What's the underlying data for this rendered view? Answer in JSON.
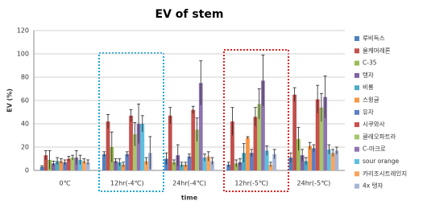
{
  "chart_data": {
    "type": "bar",
    "title": "EV of stem",
    "x_label": "time",
    "y_label": "EV (%)",
    "categories": [
      "0℃",
      "12hr(-4℃)",
      "24hr(-4℃)",
      "12hr(-5℃)",
      "24hr(-5℃)"
    ],
    "ylim": [
      0,
      120
    ],
    "yticks": [
      0,
      20,
      40,
      60,
      80,
      100,
      120
    ],
    "grid": true,
    "series": [
      {
        "name": "루비득스",
        "color": "#4F81BD",
        "values": [
          3,
          14,
          10,
          5,
          11
        ],
        "errors": [
          1,
          2,
          5,
          2,
          4
        ]
      },
      {
        "name": "올케머레론",
        "color": "#C0504D",
        "values": [
          13,
          42,
          47,
          42,
          65
        ],
        "errors": [
          4,
          6,
          7,
          12,
          6
        ]
      },
      {
        "name": "C-35",
        "color": "#9BBB59",
        "values": [
          9,
          20,
          7,
          6,
          27
        ],
        "errors": [
          8,
          13,
          2,
          3,
          10
        ]
      },
      {
        "name": "탱자",
        "color": "#8064A2",
        "values": [
          6,
          8,
          13,
          7,
          13
        ],
        "errors": [
          2,
          2,
          9,
          3,
          5
        ]
      },
      {
        "name": "비룡",
        "color": "#4BACC6",
        "values": [
          8,
          7,
          5,
          15,
          8
        ],
        "errors": [
          3,
          3,
          2,
          8,
          3
        ]
      },
      {
        "name": "스윙글",
        "color": "#F79646",
        "values": [
          8,
          5,
          5,
          28,
          21
        ],
        "errors": [
          2,
          2,
          2,
          1,
          3
        ]
      },
      {
        "name": "유자",
        "color": "#5B7FC4",
        "values": [
          7,
          14,
          12,
          15,
          19
        ],
        "errors": [
          2,
          2,
          2,
          3,
          3
        ]
      },
      {
        "name": "시쿠와사",
        "color": "#C9504E",
        "values": [
          10,
          47,
          52,
          46,
          61
        ],
        "errors": [
          2,
          5,
          3,
          8,
          12
        ]
      },
      {
        "name": "클레오파트라",
        "color": "#A5C76A",
        "values": [
          11,
          31,
          35,
          57,
          54
        ],
        "errors": [
          2,
          10,
          10,
          13,
          12
        ]
      },
      {
        "name": "C-마크로",
        "color": "#8E73B0",
        "values": [
          11,
          40,
          75,
          77,
          63
        ],
        "errors": [
          6,
          17,
          19,
          22,
          18
        ]
      },
      {
        "name": "sour orange",
        "color": "#5BC0DE",
        "values": [
          9,
          40,
          11,
          17,
          18
        ],
        "errors": [
          4,
          7,
          3,
          4,
          4
        ]
      },
      {
        "name": "카리조시트레인지",
        "color": "#F9A45C",
        "values": [
          8,
          8,
          12,
          5,
          15
        ],
        "errors": [
          2,
          3,
          4,
          2,
          3
        ]
      },
      {
        "name": "4x 탱자",
        "color": "#A6B5D6",
        "values": [
          7,
          15,
          8,
          14,
          17
        ],
        "errors": [
          2,
          14,
          3,
          4,
          3
        ]
      }
    ]
  }
}
